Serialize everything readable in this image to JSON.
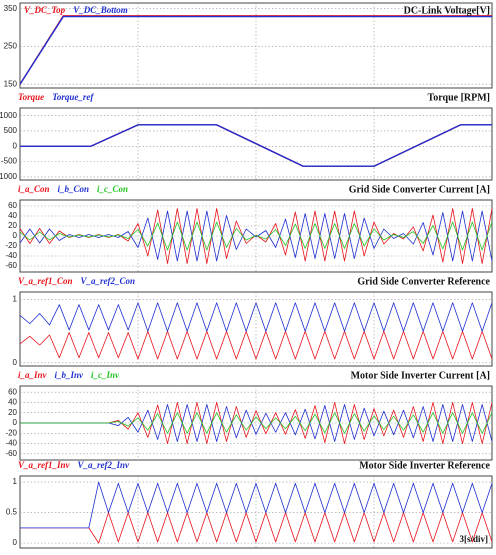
{
  "chart_data": [
    {
      "type": "line",
      "title": "DC-Link Voltage[V]",
      "xlim": [
        0,
        12
      ],
      "xticks": [
        3,
        6,
        9
      ],
      "ylim": [
        140,
        365
      ],
      "yticks": [
        150,
        250,
        350
      ],
      "grid": true,
      "x": [
        0,
        1.1,
        12
      ],
      "series": [
        {
          "name": "V_DC_Top",
          "color": "#e8141c",
          "values": [
            150,
            331,
            331
          ]
        },
        {
          "name": "V_DC_Bottom",
          "color": "#1f2fd0",
          "values": [
            150,
            329,
            329
          ]
        }
      ]
    },
    {
      "type": "line",
      "title": "Torque [RPM]",
      "xlim": [
        0,
        12
      ],
      "xticks": [
        3,
        6,
        9
      ],
      "ylim": [
        -1100,
        1250
      ],
      "yticks": [
        -1000,
        -500,
        0,
        500,
        1000
      ],
      "grid": true,
      "x": [
        0,
        1.8,
        3,
        5,
        7.2,
        9,
        11.2,
        12
      ],
      "series": [
        {
          "name": "Torque",
          "color": "#e8141c",
          "values": [
            0,
            0,
            700,
            700,
            -650,
            -650,
            700,
            700
          ]
        },
        {
          "name": "Torque_ref",
          "color": "#1f2fd0",
          "values": [
            0,
            0,
            700,
            700,
            -650,
            -650,
            700,
            700
          ]
        }
      ]
    },
    {
      "type": "line",
      "title": "Grid Side Converter Current [A]",
      "xlim": [
        0,
        12
      ],
      "xticks": [
        3,
        6,
        9
      ],
      "ylim": [
        -72,
        72
      ],
      "yticks": [
        -60,
        -40,
        -20,
        0,
        20,
        40,
        60
      ],
      "grid": true,
      "x": [
        0,
        0.25,
        0.5,
        0.75,
        1,
        1.25,
        1.5,
        1.75,
        2,
        2.25,
        2.5,
        2.75,
        3,
        3.25,
        3.5,
        3.75,
        4,
        4.25,
        4.5,
        4.75,
        5,
        5.25,
        5.5,
        5.75,
        6,
        6.25,
        6.5,
        6.75,
        7,
        7.25,
        7.5,
        7.75,
        8,
        8.25,
        8.5,
        8.75,
        9,
        9.25,
        9.5,
        9.75,
        10,
        10.25,
        10.5,
        10.75,
        11,
        11.25,
        11.5,
        11.75,
        12
      ],
      "series": [
        {
          "name": "i_a_Con",
          "color": "#e8141c",
          "values": [
            15,
            -15,
            15,
            -15,
            10,
            -3,
            3,
            -3,
            3,
            -3,
            3,
            -10,
            25,
            -40,
            52,
            -55,
            55,
            -55,
            55,
            -55,
            55,
            -45,
            30,
            -15,
            2,
            -12,
            25,
            -38,
            48,
            -50,
            50,
            -50,
            50,
            -50,
            50,
            -40,
            28,
            -16,
            5,
            -6,
            18,
            -30,
            42,
            -52,
            55,
            -55,
            55,
            -55,
            55
          ]
        },
        {
          "name": "i_b_Con",
          "color": "#1f2fd0",
          "values": [
            -14,
            14,
            -14,
            14,
            -9,
            3,
            -3,
            3,
            -3,
            3,
            -3,
            9,
            -23,
            36,
            -47,
            50,
            -50,
            50,
            -50,
            50,
            -50,
            41,
            -27,
            14,
            -2,
            11,
            -23,
            34,
            -43,
            45,
            -45,
            45,
            -45,
            45,
            -45,
            36,
            -25,
            14,
            -5,
            5,
            -16,
            27,
            -38,
            47,
            -50,
            50,
            -50,
            50,
            -50
          ]
        },
        {
          "name": "i_c_Con",
          "color": "#22c422",
          "values": [
            8,
            -8,
            8,
            -8,
            5,
            -2,
            2,
            -2,
            2,
            -2,
            2,
            -5,
            13,
            -20,
            26,
            -28,
            28,
            -28,
            28,
            -28,
            28,
            -23,
            15,
            -8,
            1,
            -6,
            13,
            -19,
            24,
            -25,
            25,
            -25,
            25,
            -25,
            25,
            -20,
            14,
            -8,
            3,
            -3,
            9,
            -15,
            21,
            -26,
            28,
            -28,
            28,
            -28,
            28
          ]
        }
      ]
    },
    {
      "type": "line",
      "title": "Grid Side Converter Reference",
      "xlim": [
        0,
        12
      ],
      "xticks": [
        3,
        6,
        9
      ],
      "ylim": [
        -0.05,
        1.12
      ],
      "yticks": [
        0,
        1
      ],
      "grid": true,
      "x": [
        0,
        0.25,
        0.5,
        0.75,
        1,
        1.25,
        1.5,
        1.75,
        2,
        2.25,
        2.5,
        2.75,
        3,
        3.25,
        3.5,
        3.75,
        4,
        4.25,
        4.5,
        4.75,
        5,
        5.25,
        5.5,
        5.75,
        6,
        6.25,
        6.5,
        6.75,
        7,
        7.25,
        7.5,
        7.75,
        8,
        8.25,
        8.5,
        8.75,
        9,
        9.25,
        9.5,
        9.75,
        10,
        10.25,
        10.5,
        10.75,
        11,
        11.25,
        11.5,
        11.75,
        12
      ],
      "series": [
        {
          "name": "V_a_ref1_Con",
          "color": "#e8141c",
          "values": [
            0.3,
            0.42,
            0.28,
            0.44,
            0.08,
            0.48,
            0.08,
            0.48,
            0.08,
            0.48,
            0.08,
            0.48,
            0.06,
            0.5,
            0.06,
            0.5,
            0.06,
            0.5,
            0.06,
            0.5,
            0.06,
            0.5,
            0.06,
            0.5,
            0.06,
            0.5,
            0.06,
            0.5,
            0.06,
            0.5,
            0.06,
            0.5,
            0.06,
            0.5,
            0.06,
            0.5,
            0.06,
            0.5,
            0.06,
            0.5,
            0.06,
            0.5,
            0.06,
            0.5,
            0.06,
            0.5,
            0.06,
            0.5,
            0.06
          ]
        },
        {
          "name": "V_a_ref2_Con",
          "color": "#1f2fd0",
          "values": [
            0.75,
            0.62,
            0.78,
            0.6,
            0.92,
            0.52,
            0.92,
            0.52,
            0.92,
            0.52,
            0.92,
            0.52,
            0.95,
            0.5,
            0.95,
            0.5,
            0.95,
            0.5,
            0.95,
            0.5,
            0.95,
            0.5,
            0.95,
            0.5,
            0.95,
            0.5,
            0.95,
            0.5,
            0.95,
            0.5,
            0.95,
            0.5,
            0.95,
            0.5,
            0.95,
            0.5,
            0.95,
            0.5,
            0.95,
            0.5,
            0.95,
            0.5,
            0.95,
            0.5,
            0.95,
            0.5,
            0.95,
            0.5,
            0.95
          ]
        }
      ]
    },
    {
      "type": "line",
      "title": "Motor Side Inverter Current [A]",
      "xlim": [
        0,
        12
      ],
      "xticks": [
        3,
        6,
        9
      ],
      "ylim": [
        -72,
        72
      ],
      "yticks": [
        -60,
        -40,
        -20,
        0,
        20,
        40,
        60
      ],
      "grid": true,
      "x": [
        0,
        0.25,
        0.5,
        0.75,
        1,
        1.25,
        1.5,
        1.75,
        2,
        2.25,
        2.5,
        2.75,
        3,
        3.25,
        3.5,
        3.75,
        4,
        4.25,
        4.5,
        4.75,
        5,
        5.25,
        5.5,
        5.75,
        6,
        6.25,
        6.5,
        6.75,
        7,
        7.25,
        7.5,
        7.75,
        8,
        8.25,
        8.5,
        8.75,
        9,
        9.25,
        9.5,
        9.75,
        10,
        10.25,
        10.5,
        10.75,
        11,
        11.25,
        11.5,
        11.75,
        12
      ],
      "series": [
        {
          "name": "i_a_Inv",
          "color": "#e8141c",
          "values": [
            0,
            0,
            0,
            0,
            0,
            0,
            0,
            0,
            0,
            0,
            5,
            -12,
            20,
            -28,
            35,
            -40,
            40,
            -40,
            40,
            -40,
            40,
            -36,
            32,
            -28,
            24,
            -21,
            20,
            -22,
            26,
            -30,
            34,
            -38,
            40,
            -40,
            36,
            -32,
            28,
            -25,
            25,
            -28,
            32,
            -36,
            40,
            -40,
            40,
            -40,
            40,
            -40,
            40
          ]
        },
        {
          "name": "i_b_Inv",
          "color": "#1f2fd0",
          "values": [
            0,
            0,
            0,
            0,
            0,
            0,
            0,
            0,
            0,
            0,
            -5,
            11,
            -18,
            25,
            -32,
            36,
            -36,
            36,
            -36,
            36,
            -36,
            32,
            -29,
            25,
            -22,
            19,
            -18,
            20,
            -23,
            27,
            -31,
            34,
            -36,
            36,
            -32,
            29,
            -25,
            23,
            -23,
            25,
            -29,
            32,
            -36,
            36,
            -36,
            36,
            -36,
            36,
            -36
          ]
        },
        {
          "name": "i_c_Inv",
          "color": "#22c422",
          "values": [
            0,
            0,
            0,
            0,
            0,
            0,
            0,
            0,
            0,
            0,
            3,
            -6,
            10,
            -14,
            18,
            -20,
            20,
            -20,
            20,
            -20,
            20,
            -18,
            16,
            -14,
            12,
            -11,
            10,
            -11,
            13,
            -15,
            17,
            -19,
            20,
            -20,
            18,
            -16,
            14,
            -13,
            13,
            -14,
            16,
            -18,
            20,
            -20,
            20,
            -20,
            20,
            -20,
            20
          ]
        }
      ]
    },
    {
      "type": "line",
      "title": "Motor Side Inverter Reference",
      "xlim": [
        0,
        12
      ],
      "xticks": [
        3,
        6,
        9
      ],
      "ylim": [
        -0.08,
        1.1
      ],
      "yticks": [
        0,
        0.5,
        1
      ],
      "grid": true,
      "annotation": "3[s/div]",
      "x": [
        0,
        0.25,
        0.5,
        0.75,
        1,
        1.25,
        1.5,
        1.75,
        2,
        2.25,
        2.5,
        2.75,
        3,
        3.25,
        3.5,
        3.75,
        4,
        4.25,
        4.5,
        4.75,
        5,
        5.25,
        5.5,
        5.75,
        6,
        6.25,
        6.5,
        6.75,
        7,
        7.25,
        7.5,
        7.75,
        8,
        8.25,
        8.5,
        8.75,
        9,
        9.25,
        9.5,
        9.75,
        10,
        10.25,
        10.5,
        10.75,
        11,
        11.25,
        11.5,
        11.75,
        12
      ],
      "series": [
        {
          "name": "V_a_ref1_Inv",
          "color": "#e8141c",
          "values": [
            0.25,
            0.25,
            0.25,
            0.25,
            0.25,
            0.25,
            0.25,
            0.25,
            0,
            0.5,
            0.02,
            0.5,
            0.02,
            0.5,
            0.02,
            0.5,
            0.02,
            0.5,
            0.02,
            0.5,
            0.02,
            0.5,
            0.02,
            0.5,
            0.02,
            0.5,
            0.02,
            0.5,
            0.02,
            0.5,
            0.02,
            0.5,
            0.02,
            0.5,
            0.02,
            0.5,
            0.02,
            0.5,
            0.02,
            0.5,
            0.02,
            0.5,
            0.02,
            0.5,
            0.02,
            0.5,
            0.02,
            0.5,
            0.02
          ]
        },
        {
          "name": "V_a_ref2_Inv",
          "color": "#1f2fd0",
          "values": [
            0.25,
            0.25,
            0.25,
            0.25,
            0.25,
            0.25,
            0.25,
            0.25,
            1,
            0.5,
            0.98,
            0.5,
            0.98,
            0.5,
            0.98,
            0.5,
            0.98,
            0.5,
            0.98,
            0.5,
            0.98,
            0.5,
            0.98,
            0.5,
            0.98,
            0.5,
            0.98,
            0.5,
            0.98,
            0.5,
            0.98,
            0.5,
            0.98,
            0.5,
            0.98,
            0.5,
            0.98,
            0.5,
            0.98,
            0.5,
            0.98,
            0.5,
            0.98,
            0.5,
            0.98,
            0.5,
            0.98,
            0.5,
            0.98
          ]
        }
      ]
    }
  ]
}
